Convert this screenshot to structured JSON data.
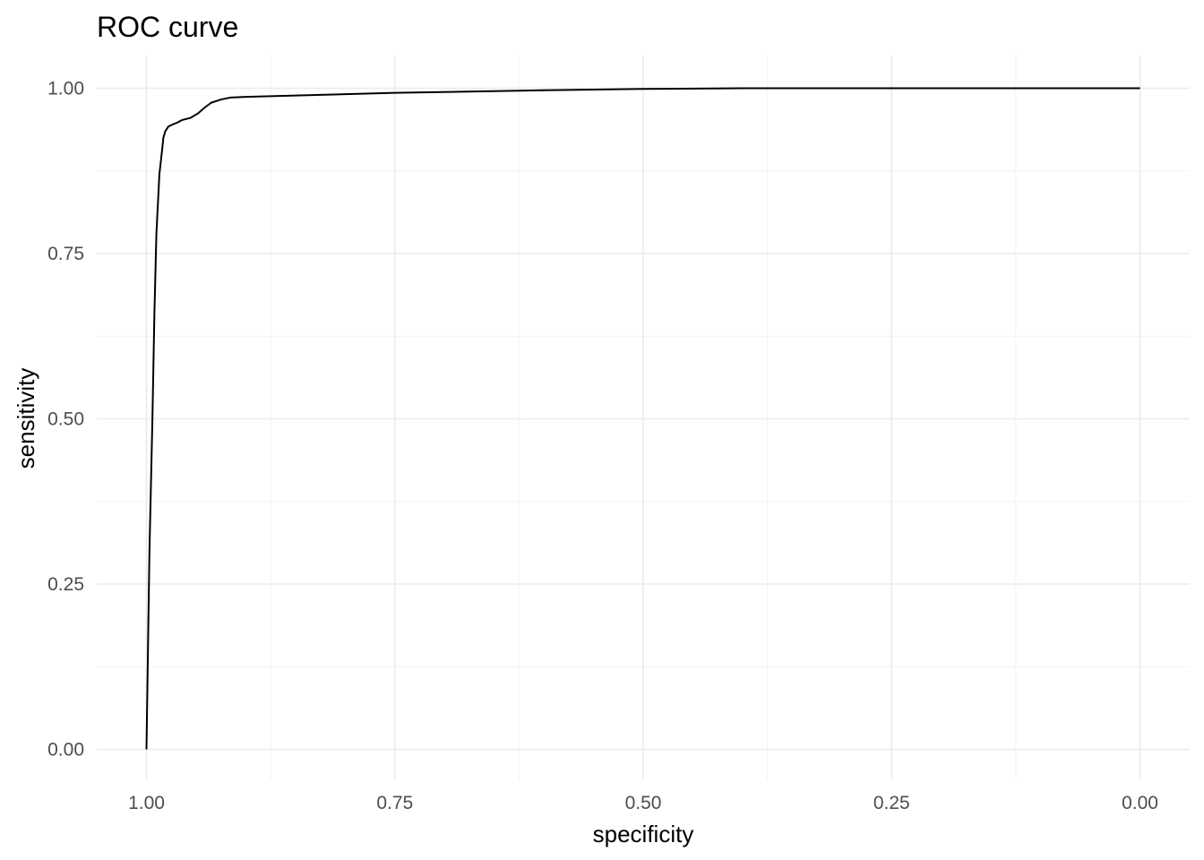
{
  "chart_data": {
    "type": "line",
    "title": "ROC curve",
    "xlabel": "specificity",
    "ylabel": "sensitivity",
    "xlim": [
      1.0,
      0.0
    ],
    "x_reversed": true,
    "ylim": [
      0.0,
      1.0
    ],
    "x_ticks": [
      1.0,
      0.75,
      0.5,
      0.25,
      0.0
    ],
    "x_tick_labels": [
      "1.00",
      "0.75",
      "0.50",
      "0.25",
      "0.00"
    ],
    "y_ticks": [
      0.0,
      0.25,
      0.5,
      0.75,
      1.0
    ],
    "y_tick_labels": [
      "0.00",
      "0.25",
      "0.50",
      "0.75",
      "1.00"
    ],
    "grid": true,
    "legend": "none",
    "series": [
      {
        "color": "#000000",
        "specificity": [
          1.0,
          0.997,
          0.994,
          0.992,
          0.991,
          0.99,
          0.989,
          0.987,
          0.984,
          0.983,
          0.981,
          0.978,
          0.974,
          0.969,
          0.964,
          0.956,
          0.948,
          0.942,
          0.935,
          0.925,
          0.915,
          0.9,
          0.85,
          0.75,
          0.6,
          0.5,
          0.4,
          0.25,
          0.1,
          0.0
        ],
        "sensitivity": [
          0.0,
          0.3,
          0.5,
          0.66,
          0.72,
          0.78,
          0.81,
          0.87,
          0.91,
          0.925,
          0.935,
          0.942,
          0.945,
          0.948,
          0.952,
          0.955,
          0.962,
          0.97,
          0.978,
          0.983,
          0.986,
          0.987,
          0.989,
          0.993,
          0.997,
          0.999,
          1.0,
          1.0,
          1.0,
          1.0
        ]
      }
    ]
  }
}
